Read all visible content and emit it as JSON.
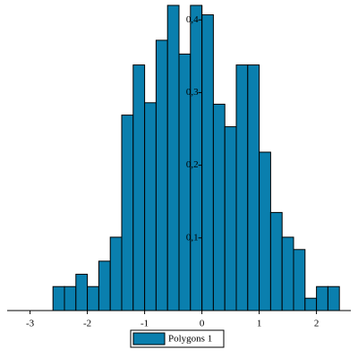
{
  "chart_data": {
    "type": "histogram",
    "bins": [
      -2.6,
      -2.4,
      -2.2,
      -2,
      -1.8,
      -1.6,
      -1.4,
      -1.2,
      -1,
      -0.8,
      -0.6,
      -0.4,
      -0.2,
      0,
      0.2,
      0.4,
      0.6,
      0.8,
      1,
      1.2,
      1.4,
      1.6,
      1.8,
      2,
      2.2,
      2.4
    ],
    "series": [
      {
        "name": "Polygons 1",
        "color": "#0a7fae",
        "values": [
          0.033,
          0.033,
          0.05,
          0.033,
          0.068,
          0.101,
          0.269,
          0.338,
          0.286,
          0.372,
          0.42,
          0.353,
          0.42,
          0.407,
          0.284,
          0.253,
          0.338,
          0.338,
          0.218,
          0.135,
          0.101,
          0.084,
          0.017,
          0.033,
          0.033
        ]
      }
    ],
    "xlim": [
      -3.4,
      2.6
    ],
    "ylim": [
      0,
      0.42
    ],
    "xticks": [
      -3,
      -2,
      -1,
      0,
      1,
      2
    ],
    "yticks": [
      {
        "value": 0.1,
        "label": "0,1"
      },
      {
        "value": 0.2,
        "label": "0,2"
      },
      {
        "value": 0.3,
        "label": "0,3"
      },
      {
        "value": 0.4,
        "label": "0,4"
      }
    ]
  }
}
